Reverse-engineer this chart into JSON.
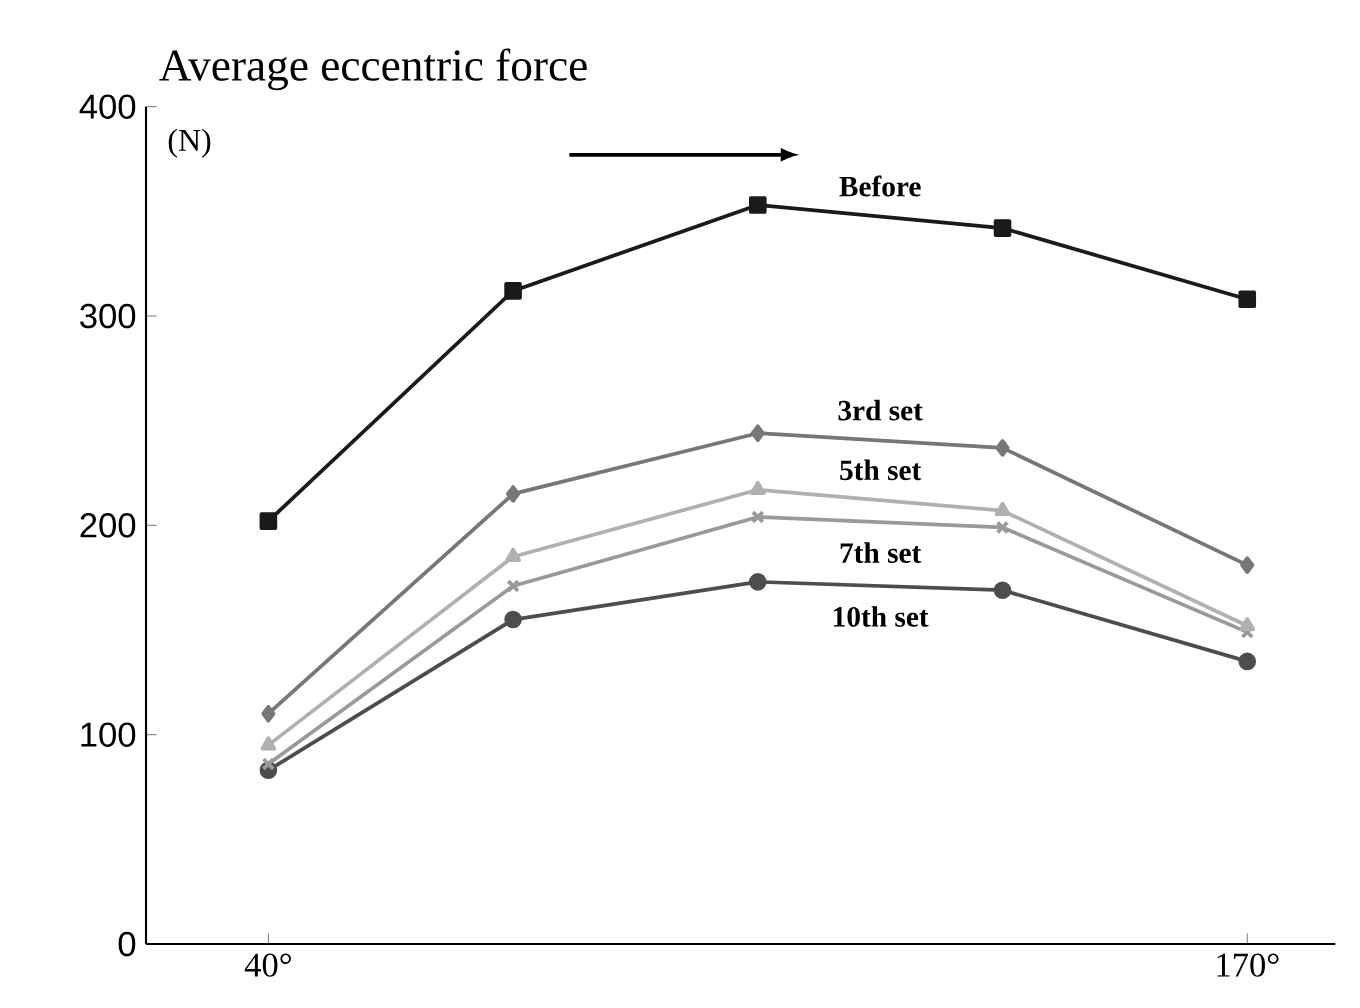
{
  "chart_data": {
    "type": "line",
    "title": "Average eccentric force",
    "ylabel": "(N)",
    "categories": [
      "40°",
      null,
      null,
      null,
      "170°"
    ],
    "ylim": [
      0,
      400
    ],
    "yticks": [
      0,
      100,
      200,
      300,
      400
    ],
    "series": [
      {
        "name": "Before",
        "color": "#1a1a1a",
        "marker": "square",
        "values": [
          202,
          312,
          353,
          342,
          308
        ]
      },
      {
        "name": "3rd set",
        "color": "#777777",
        "marker": "diamond",
        "values": [
          110,
          215,
          244,
          237,
          181
        ]
      },
      {
        "name": "5th set",
        "color": "#b0b0b0",
        "marker": "triangle",
        "values": [
          95,
          185,
          217,
          207,
          152
        ]
      },
      {
        "name": "7th set",
        "color": "#999999",
        "marker": "cross",
        "values": [
          86,
          171,
          204,
          199,
          149
        ]
      },
      {
        "name": "10th set",
        "color": "#4d4d4d",
        "marker": "circle",
        "values": [
          83,
          155,
          173,
          169,
          135
        ]
      }
    ]
  }
}
